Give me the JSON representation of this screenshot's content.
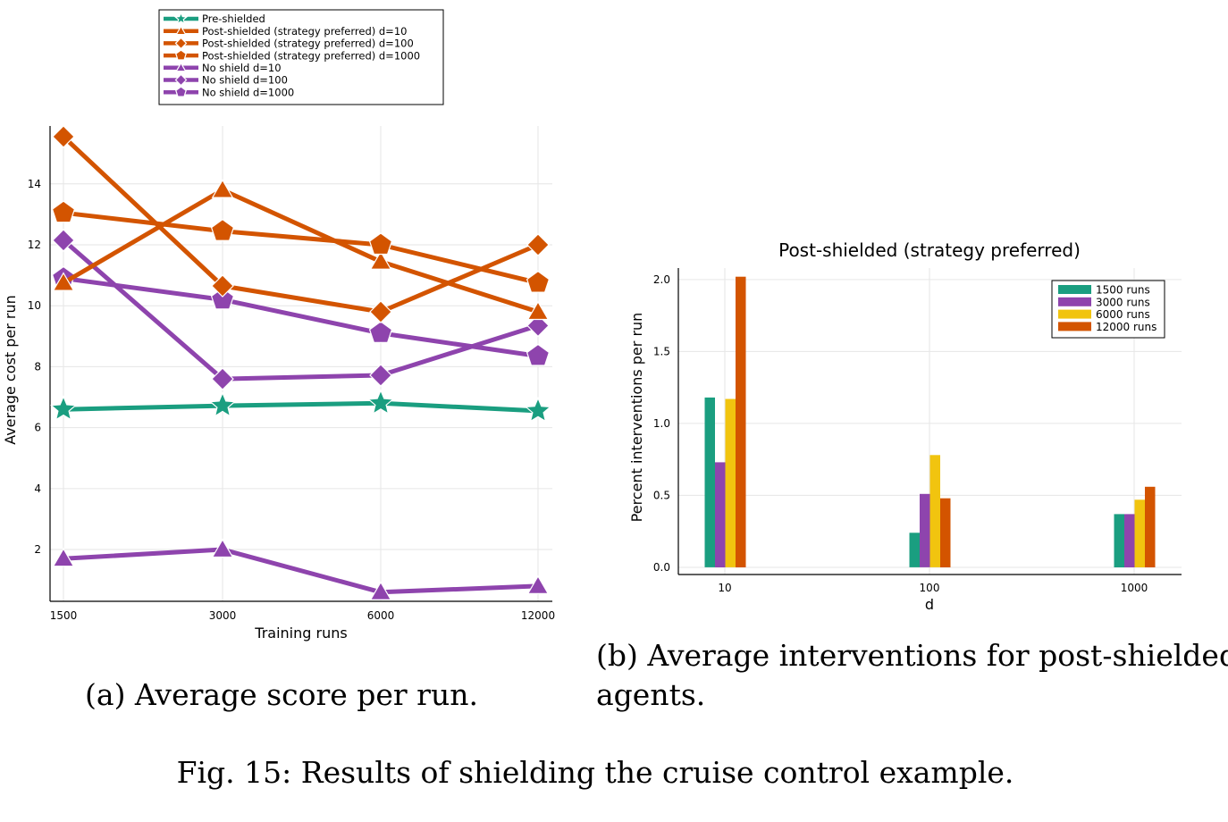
{
  "colors": {
    "teal": "#1a9e80",
    "orange": "#d35400",
    "purple": "#8e44ad",
    "yellow": "#f1c40f",
    "grid": "#e6e6e6",
    "axis": "#000000"
  },
  "captions": {
    "a": "(a) Average score per run.",
    "b_line1": "(b) Average interventions for post-shielded",
    "b_line2": "agents.",
    "figure": "Fig. 15: Results of shielding the cruise control example."
  },
  "chart_data": [
    {
      "type": "line",
      "title": "",
      "xlabel": "Training runs",
      "ylabel": "Average cost per run",
      "x": [
        1500,
        3000,
        6000,
        12000
      ],
      "x_tick_labels": [
        "1500",
        "3000",
        "6000",
        "12000"
      ],
      "y_ticks": [
        2,
        4,
        6,
        8,
        10,
        12,
        14
      ],
      "ylim": [
        0.3,
        15.9
      ],
      "grid": true,
      "legend_position": "outer-top",
      "series": [
        {
          "name": "Pre-shielded",
          "color": "#1a9e80",
          "marker": "star",
          "values": [
            6.6,
            6.72,
            6.8,
            6.55
          ]
        },
        {
          "name": "Post-shielded (strategy preferred) d=10",
          "color": "#d35400",
          "marker": "triangle",
          "values": [
            10.75,
            13.8,
            11.45,
            9.8
          ]
        },
        {
          "name": "Post-shielded (strategy preferred) d=100",
          "color": "#d35400",
          "marker": "diamond",
          "values": [
            15.55,
            10.65,
            9.8,
            12.0
          ]
        },
        {
          "name": "Post-shielded (strategy preferred) d=1000",
          "color": "#d35400",
          "marker": "pentagon",
          "values": [
            13.05,
            12.45,
            12.0,
            10.75
          ]
        },
        {
          "name": "No shield d=10",
          "color": "#8e44ad",
          "marker": "triangle",
          "values": [
            1.7,
            2.0,
            0.6,
            0.8
          ]
        },
        {
          "name": "No shield d=100",
          "color": "#8e44ad",
          "marker": "diamond",
          "values": [
            12.15,
            7.6,
            7.72,
            9.35
          ]
        },
        {
          "name": "No shield d=1000",
          "color": "#8e44ad",
          "marker": "pentagon",
          "values": [
            10.9,
            10.2,
            9.1,
            8.35
          ]
        }
      ]
    },
    {
      "type": "bar",
      "title": "Post-shielded (strategy preferred)",
      "xlabel": "d",
      "ylabel": "Percent interventions per run",
      "categories": [
        "10",
        "100",
        "1000"
      ],
      "y_ticks": [
        0.0,
        0.5,
        1.0,
        1.5,
        2.0
      ],
      "y_tick_labels": [
        "0.0",
        "0.5",
        "1.0",
        "1.5",
        "2.0"
      ],
      "ylim": [
        -0.05,
        2.08
      ],
      "grid": true,
      "legend_position": "top-right",
      "series": [
        {
          "name": "1500 runs",
          "color": "#1a9e80",
          "values": [
            1.18,
            0.24,
            0.37
          ]
        },
        {
          "name": "3000 runs",
          "color": "#8e44ad",
          "values": [
            0.73,
            0.51,
            0.37
          ]
        },
        {
          "name": "6000 runs",
          "color": "#f1c40f",
          "values": [
            1.17,
            0.78,
            0.47
          ]
        },
        {
          "name": "12000 runs",
          "color": "#d35400",
          "values": [
            2.02,
            0.48,
            0.56
          ]
        }
      ]
    }
  ]
}
